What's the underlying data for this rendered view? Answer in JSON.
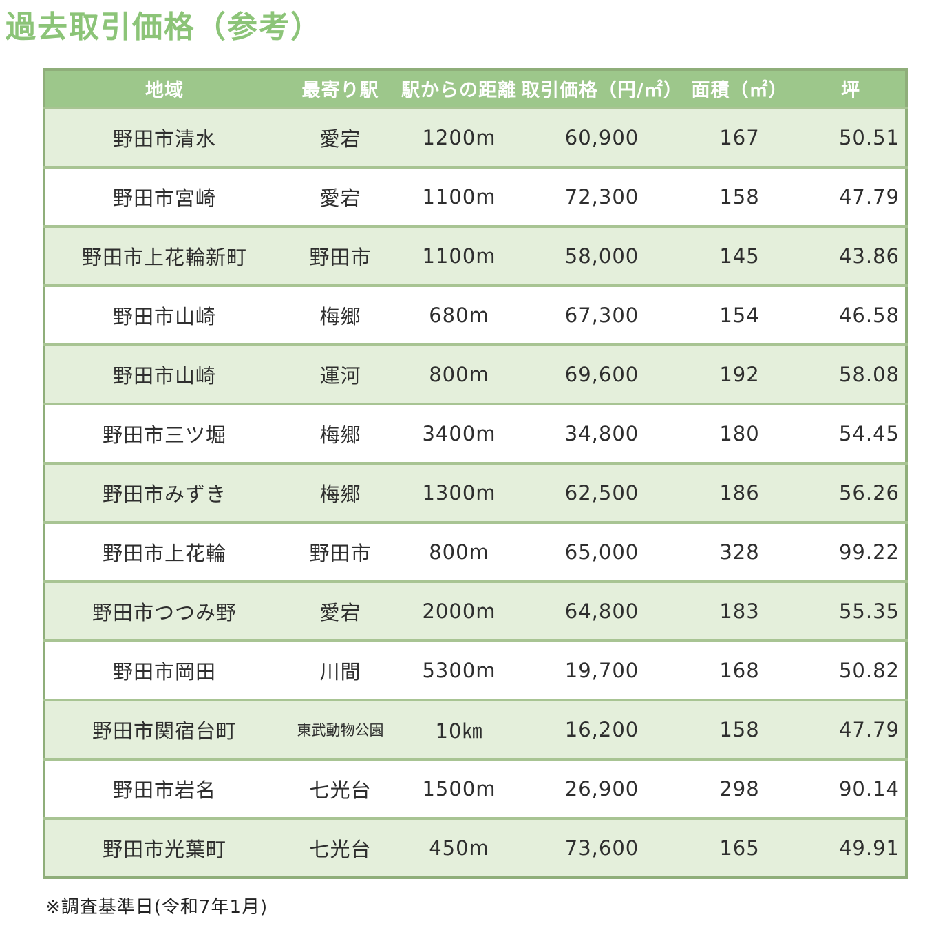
{
  "title": "過去取引価格（参考）",
  "footnote": "※調査基準日(令和7年1月)",
  "colors": {
    "title_green": "#8cc478",
    "header_bg": "#9dc78b",
    "header_text": "#ffffff",
    "row_green_bg": "#e4efdb",
    "row_white_bg": "#ffffff",
    "outer_border": "#8fae7a",
    "row_separator": "#a8c493",
    "body_text": "#2e2e2e"
  },
  "table": {
    "columns": [
      "地域",
      "最寄り駅",
      "駅からの距離",
      "取引価格（円/㎡）",
      "面積（㎡）",
      "坪"
    ],
    "column_keys": [
      "region",
      "station",
      "distance",
      "price",
      "area",
      "tsubo"
    ],
    "rows": [
      {
        "region": "野田市清水",
        "station": "愛宕",
        "distance": "1200m",
        "price": "60,900",
        "area": "167",
        "tsubo": "50.51"
      },
      {
        "region": "野田市宮崎",
        "station": "愛宕",
        "distance": "1100m",
        "price": "72,300",
        "area": "158",
        "tsubo": "47.79"
      },
      {
        "region": "野田市上花輪新町",
        "station": "野田市",
        "distance": "1100m",
        "price": "58,000",
        "area": "145",
        "tsubo": "43.86"
      },
      {
        "region": "野田市山崎",
        "station": "梅郷",
        "distance": "680m",
        "price": "67,300",
        "area": "154",
        "tsubo": "46.58"
      },
      {
        "region": "野田市山崎",
        "station": "運河",
        "distance": "800m",
        "price": "69,600",
        "area": "192",
        "tsubo": "58.08"
      },
      {
        "region": "野田市三ツ堀",
        "station": "梅郷",
        "distance": "3400m",
        "price": "34,800",
        "area": "180",
        "tsubo": "54.45"
      },
      {
        "region": "野田市みずき",
        "station": "梅郷",
        "distance": "1300m",
        "price": "62,500",
        "area": "186",
        "tsubo": "56.26"
      },
      {
        "region": "野田市上花輪",
        "station": "野田市",
        "distance": "800m",
        "price": "65,000",
        "area": "328",
        "tsubo": "99.22"
      },
      {
        "region": "野田市つつみ野",
        "station": "愛宕",
        "distance": "2000m",
        "price": "64,800",
        "area": "183",
        "tsubo": "55.35"
      },
      {
        "region": "野田市岡田",
        "station": "川間",
        "distance": "5300m",
        "price": "19,700",
        "area": "168",
        "tsubo": "50.82"
      },
      {
        "region": "野田市関宿台町",
        "station": "東武動物公園",
        "distance": "10㎞",
        "price": "16,200",
        "area": "158",
        "tsubo": "47.79"
      },
      {
        "region": "野田市岩名",
        "station": "七光台",
        "distance": "1500m",
        "price": "26,900",
        "area": "298",
        "tsubo": "90.14"
      },
      {
        "region": "野田市光葉町",
        "station": "七光台",
        "distance": "450m",
        "price": "73,600",
        "area": "165",
        "tsubo": "49.91"
      }
    ]
  }
}
